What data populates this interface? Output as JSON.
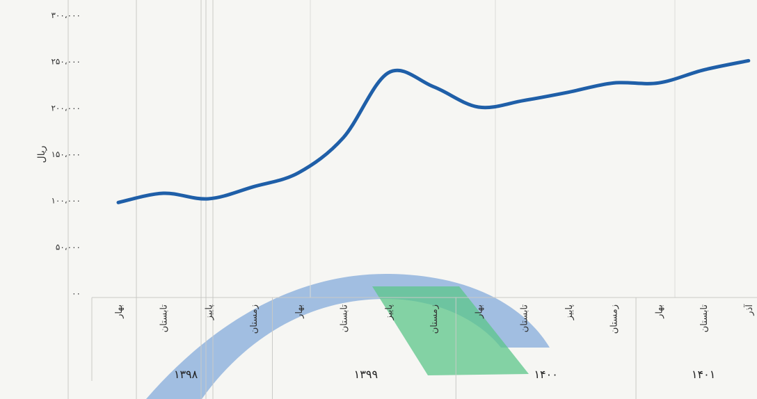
{
  "chart_data": {
    "type": "line",
    "ylabel": "ریال",
    "ylim": [
      0,
      300000
    ],
    "yticks": [
      0,
      50000,
      100000,
      150000,
      200000,
      250000,
      300000
    ],
    "ytick_labels": [
      "۰۰",
      "۵۰،۰۰۰",
      "۱۰۰،۰۰۰",
      "۱۵۰،۰۰۰",
      "۲۰۰،۰۰۰",
      "۲۵۰،۰۰۰",
      "۳۰۰،۰۰۰"
    ],
    "categories": [
      "بهار",
      "تابستان",
      "پاییز",
      "زمستان",
      "بهار",
      "تابستان",
      "پاییز",
      "زمستان",
      "بهار",
      "تابستان",
      "پاییز",
      "زمستان",
      "بهار",
      "تابستان",
      "آذر"
    ],
    "groups": [
      {
        "label": "۱۳۹۸",
        "count": 4
      },
      {
        "label": "۱۳۹۹",
        "count": 4
      },
      {
        "label": "۱۴۰۰",
        "count": 4
      },
      {
        "label": "۱۴۰۱",
        "count": 3
      }
    ],
    "values": [
      98000,
      108000,
      102000,
      115000,
      130000,
      168000,
      238000,
      223000,
      201000,
      208000,
      217000,
      227000,
      227000,
      241000,
      251000
    ],
    "grid": "vertical",
    "colors": {
      "line": "#1f5fa8",
      "grid": "#c9c9c6"
    }
  },
  "watermark": {
    "colors": {
      "blue": "#5b8fd1",
      "green": "#5cc58a"
    }
  }
}
